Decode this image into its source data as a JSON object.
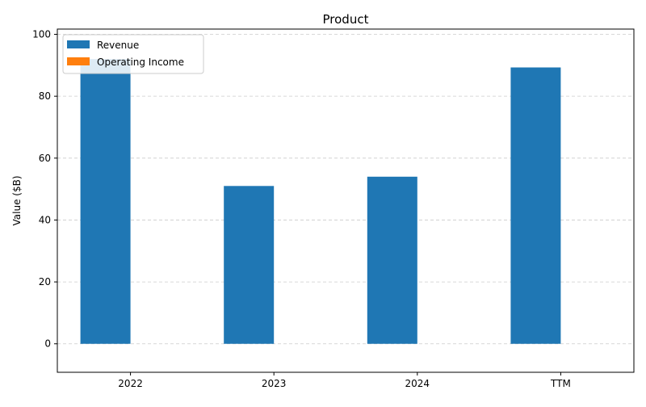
{
  "chart_data": {
    "type": "bar",
    "title": "Product",
    "xlabel": "",
    "ylabel": "Value ($B)",
    "categories": [
      "2022",
      "2023",
      "2024",
      "TTM"
    ],
    "series": [
      {
        "name": "Revenue",
        "color": "#1f77b4",
        "values": [
          92.0,
          51.0,
          54.0,
          89.3
        ]
      },
      {
        "name": "Operating Income",
        "color": "#ff7f0e",
        "values": [
          0,
          0,
          0,
          0
        ]
      }
    ],
    "ylim": [
      -9.2,
      101.7
    ],
    "yticks": [
      0,
      20,
      40,
      60,
      80,
      100
    ],
    "grid": true,
    "legend_position": "top-left"
  }
}
